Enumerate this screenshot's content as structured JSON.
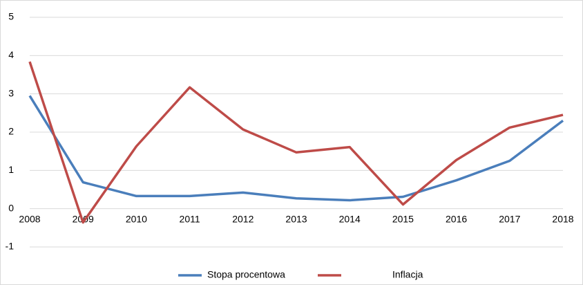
{
  "chart_data": {
    "type": "line",
    "x": [
      2008,
      2009,
      2010,
      2011,
      2012,
      2013,
      2014,
      2015,
      2016,
      2017,
      2018
    ],
    "xlim": [
      2008,
      2018
    ],
    "xticks": [
      2008,
      2009,
      2010,
      2011,
      2012,
      2013,
      2014,
      2015,
      2016,
      2017,
      2018
    ],
    "ylim": [
      -1,
      5
    ],
    "yticks": [
      -1,
      0,
      1,
      2,
      3,
      4,
      5
    ],
    "grid": true,
    "legend": "bottom",
    "series": [
      {
        "name": "Stopa procentowa",
        "color": "#4a7ebb",
        "values": [
          2.95,
          0.69,
          0.33,
          0.33,
          0.42,
          0.27,
          0.22,
          0.31,
          0.74,
          1.25,
          2.3
        ]
      },
      {
        "name": "Inflacja",
        "color": "#be4b48",
        "values": [
          3.84,
          -0.36,
          1.63,
          3.17,
          2.07,
          1.47,
          1.61,
          0.11,
          1.27,
          2.12,
          2.45
        ]
      }
    ]
  }
}
